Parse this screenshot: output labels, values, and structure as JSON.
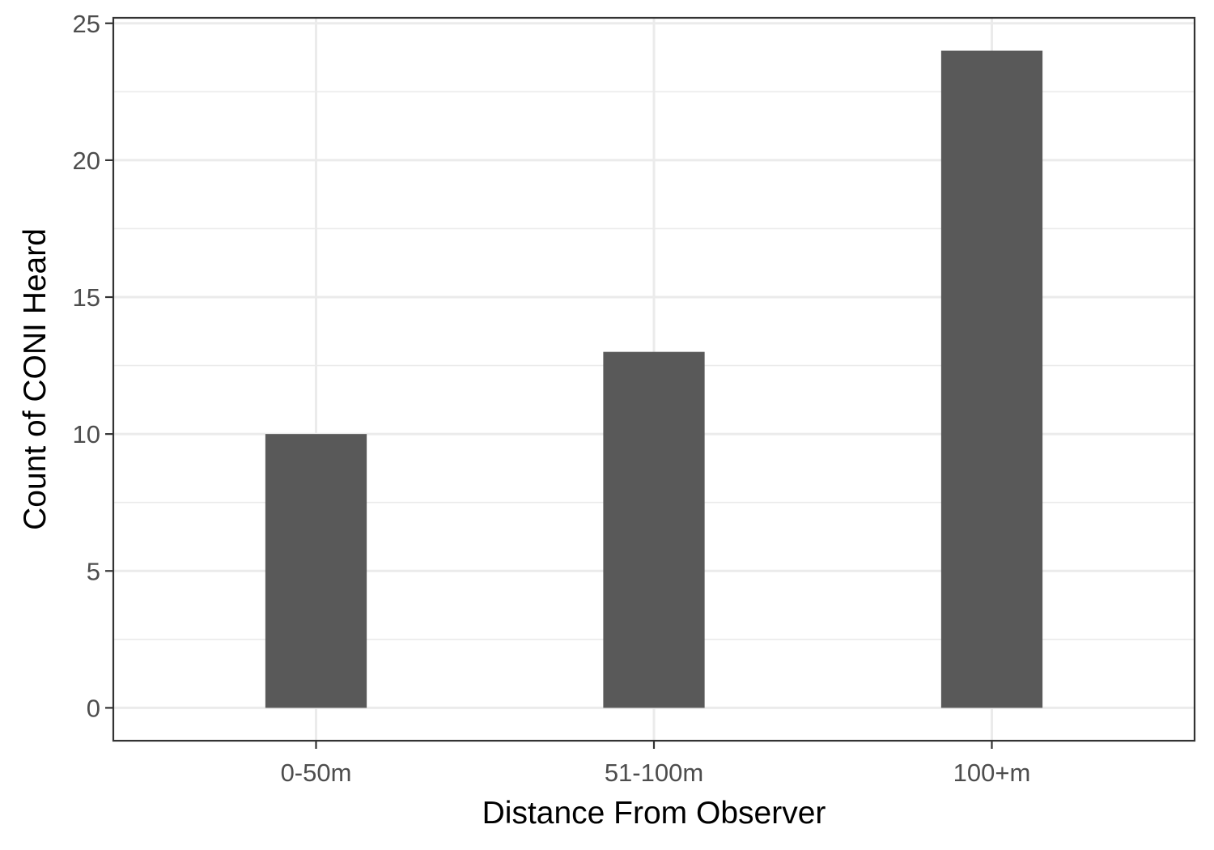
{
  "chart_data": {
    "type": "bar",
    "categories": [
      "0-50m",
      "51-100m",
      "100+m"
    ],
    "values": [
      10,
      13,
      24
    ],
    "xlabel": "Distance From Observer",
    "ylabel": "Count of CONI Heard",
    "ylim": [
      -1.2,
      25.2
    ],
    "yticks": [
      0,
      5,
      10,
      15,
      20,
      25
    ],
    "grid": true,
    "bar_color": "#595959",
    "grid_color": "#ebebeb",
    "panel_border_color": "#333333"
  }
}
